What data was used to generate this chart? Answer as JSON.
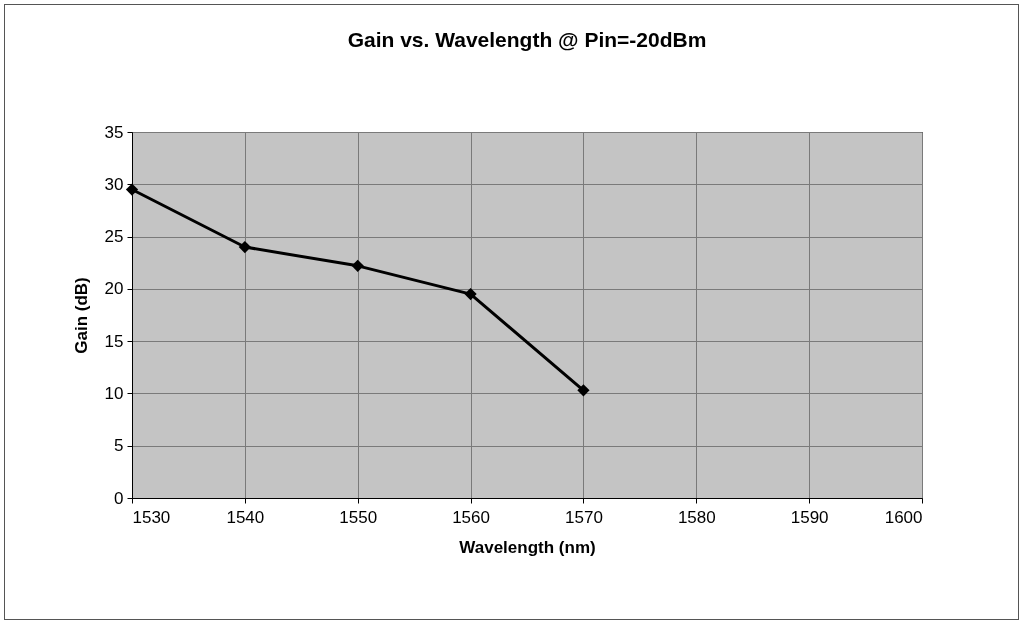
{
  "chart_data": {
    "type": "line",
    "title": "Gain vs. Wavelength @ Pin=-20dBm",
    "xlabel": "Wavelength (nm)",
    "ylabel": "Gain (dB)",
    "x": [
      1530,
      1540,
      1550,
      1560,
      1570
    ],
    "series": [
      {
        "color": "#000000",
        "values": [
          29.5,
          24,
          22.2,
          19.5,
          10.3
        ]
      }
    ],
    "xlim": [
      1530,
      1600
    ],
    "xticks": [
      1530,
      1540,
      1550,
      1560,
      1570,
      1580,
      1590,
      1600
    ],
    "ylim": [
      0,
      35
    ],
    "yticks": [
      0,
      5,
      10,
      15,
      20,
      25,
      30,
      35
    ],
    "grid": true,
    "legend": false,
    "marker": "diamond",
    "line_style": "solid"
  }
}
